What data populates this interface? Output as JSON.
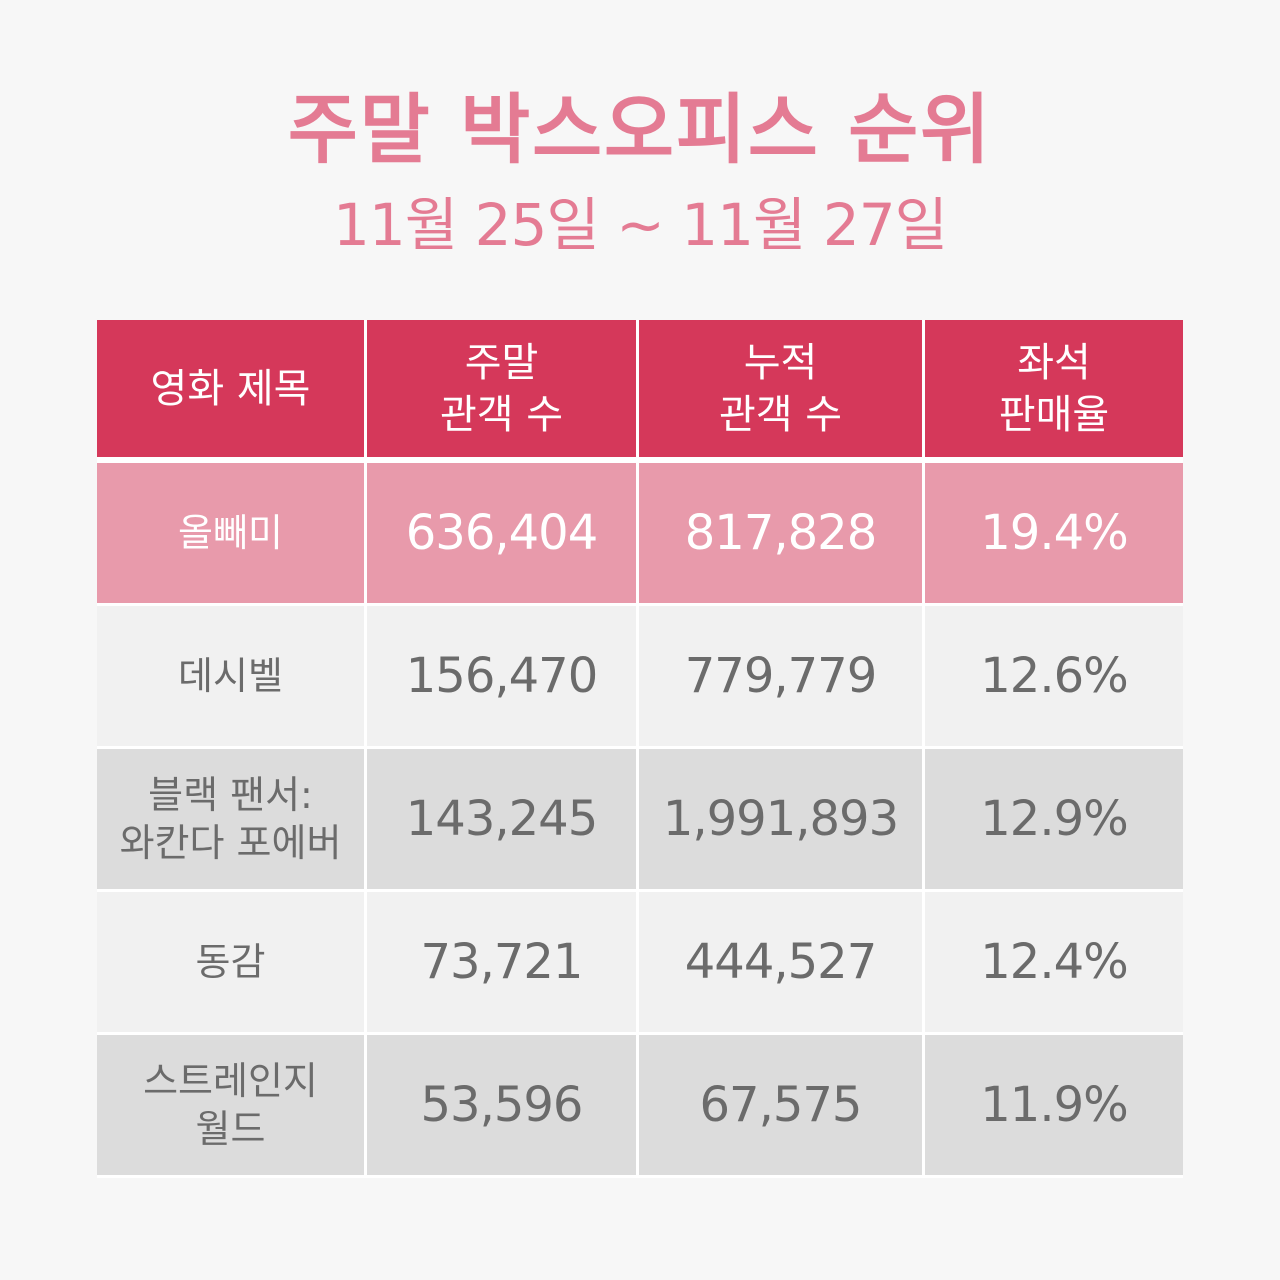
{
  "title": "주말 박스오피스 순위",
  "subtitle": "11월 25일 ~ 11월 27일",
  "colors": {
    "title": "#e47b93",
    "header_bg": "#d5385a",
    "highlight_row_bg": "#e89aab",
    "row_light_bg": "#f1f1f1",
    "row_dark_bg": "#dcdcdc",
    "row_text": "#6b6b6b"
  },
  "table": {
    "headers": [
      "영화 제목",
      "주말\n관객 수",
      "누적\n관객 수",
      "좌석\n판매율"
    ],
    "rows": [
      {
        "title": "올빼미",
        "weekend": "636,404",
        "total": "817,828",
        "seat_rate": "19.4%"
      },
      {
        "title": "데시벨",
        "weekend": "156,470",
        "total": "779,779",
        "seat_rate": "12.6%"
      },
      {
        "title": "블랙 팬서:\n와칸다 포에버",
        "weekend": "143,245",
        "total": "1,991,893",
        "seat_rate": "12.9%"
      },
      {
        "title": "동감",
        "weekend": "73,721",
        "total": "444,527",
        "seat_rate": "12.4%"
      },
      {
        "title": "스트레인지\n월드",
        "weekend": "53,596",
        "total": "67,575",
        "seat_rate": "11.9%"
      }
    ]
  }
}
